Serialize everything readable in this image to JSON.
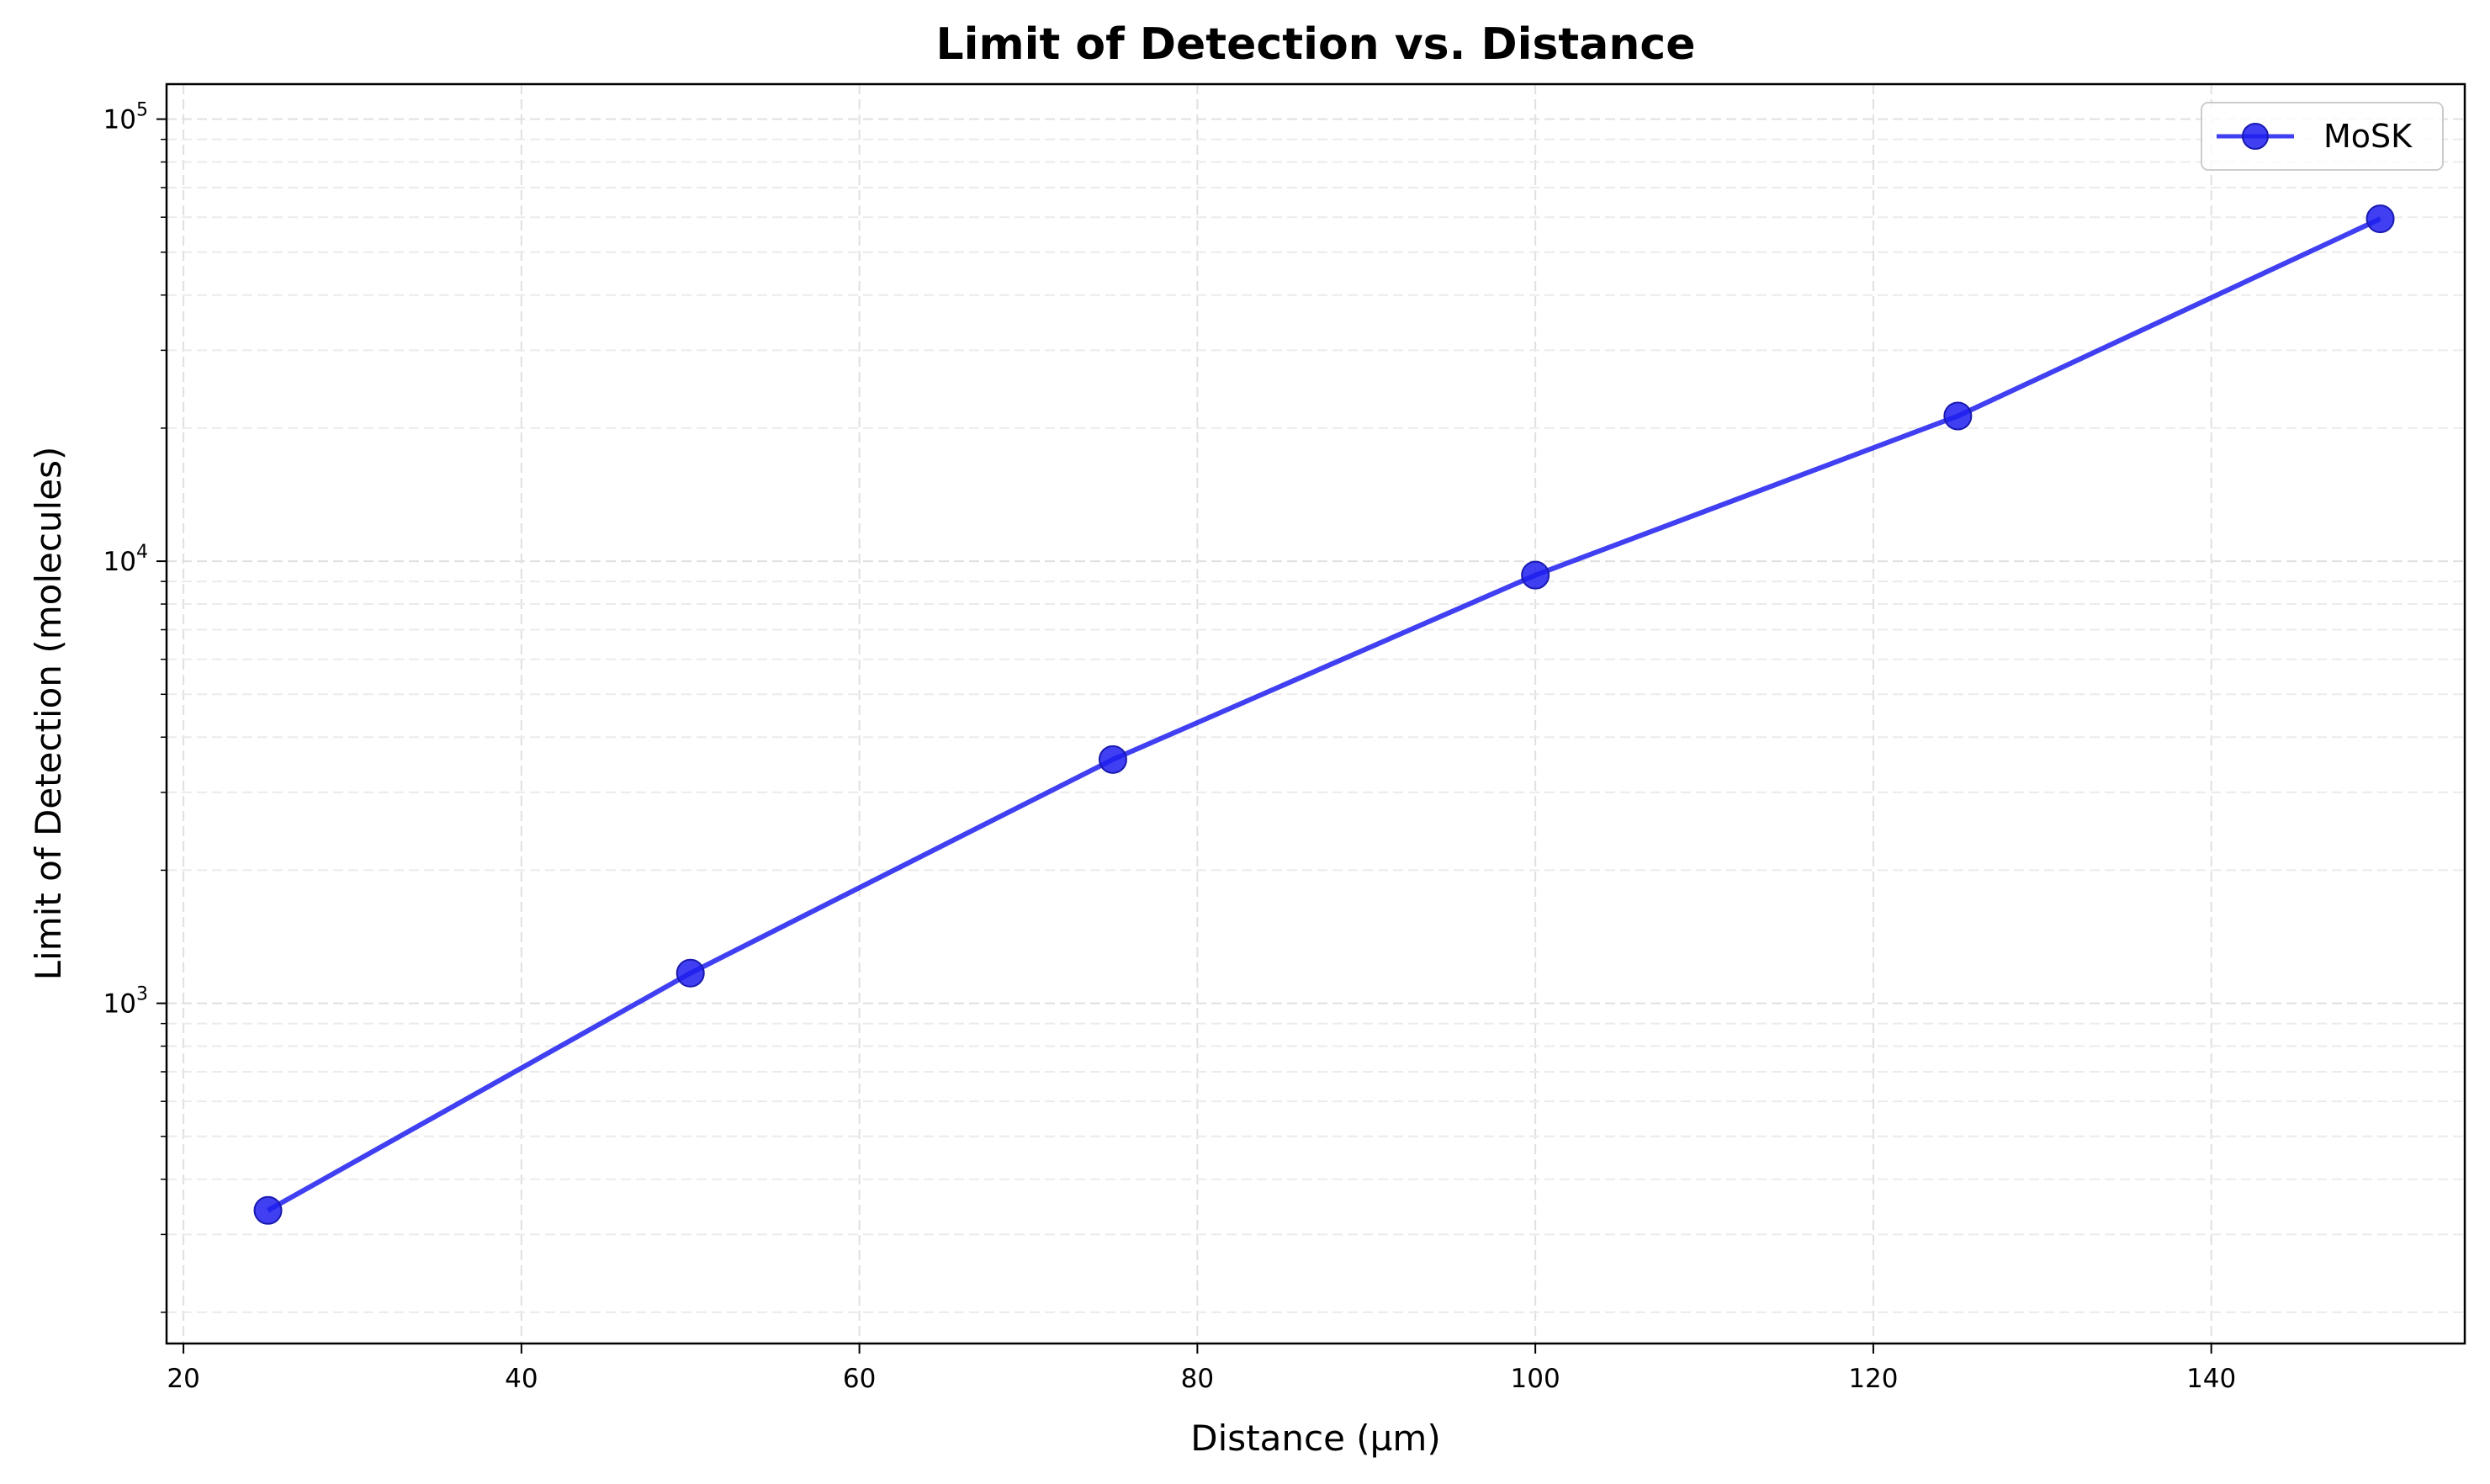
{
  "chart_data": {
    "type": "line",
    "title": "Limit of Detection vs. Distance",
    "xlabel": "Distance (µm)",
    "ylabel": "Limit of Detection (molecules)",
    "x": [
      25,
      50,
      75,
      100,
      125,
      150
    ],
    "series": [
      {
        "name": "MoSK",
        "values": [
          340,
          1170,
          3560,
          9300,
          21300,
          59500
        ],
        "color": "#1f1ff0"
      }
    ],
    "xlim": [
      19,
      155
    ],
    "ylim": [
      170,
      120000
    ],
    "yscale": "log",
    "xticks": [
      20,
      40,
      60,
      80,
      100,
      120,
      140
    ],
    "xtick_labels": [
      "20",
      "40",
      "60",
      "80",
      "100",
      "120",
      "140"
    ],
    "yticks": [
      1000,
      10000,
      100000
    ],
    "ytick_labels": [
      {
        "base": "10",
        "exp": "3"
      },
      {
        "base": "10",
        "exp": "4"
      },
      {
        "base": "10",
        "exp": "5"
      }
    ],
    "grid": true,
    "legend_position": "top-right"
  }
}
